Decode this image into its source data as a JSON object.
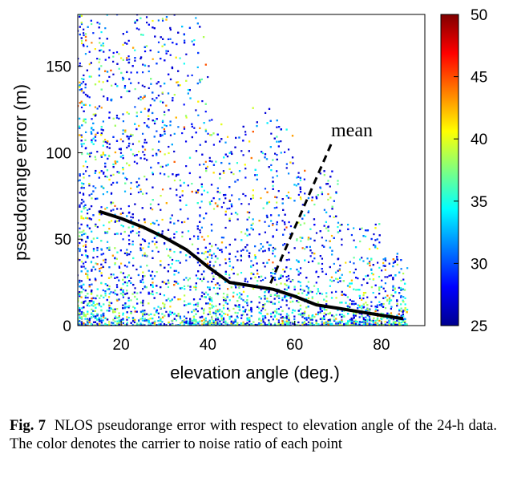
{
  "chart_data": {
    "type": "scatter",
    "title": "",
    "xlabel": "elevation angle (deg.)",
    "ylabel": "pseudorange error (m)",
    "xlim": [
      10,
      90
    ],
    "ylim": [
      0,
      180
    ],
    "x_ticks": [
      20,
      40,
      60,
      80
    ],
    "y_ticks": [
      0,
      50,
      100,
      150
    ],
    "grid": false,
    "colorbar": {
      "label": "",
      "range": [
        25,
        50
      ],
      "ticks": [
        25,
        30,
        35,
        40,
        45,
        50
      ],
      "colormap": "jet"
    },
    "series": [
      {
        "name": "mean",
        "type": "line",
        "color": "#000000",
        "x": [
          15,
          20,
          25,
          30,
          35,
          40,
          45,
          50,
          55,
          60,
          65,
          70,
          75,
          80,
          85
        ],
        "y": [
          66,
          62,
          57,
          51,
          44,
          34,
          25,
          23,
          21,
          17,
          12,
          10,
          8,
          6,
          4
        ]
      }
    ],
    "point_cloud_description_density": [
      {
        "x_range": [
          10,
          20
        ],
        "y_max": 180
      },
      {
        "x_range": [
          20,
          40
        ],
        "y_max": 180
      },
      {
        "x_range": [
          40,
          50
        ],
        "y_max": 120
      },
      {
        "x_range": [
          50,
          60
        ],
        "y_max": 130
      },
      {
        "x_range": [
          60,
          70
        ],
        "y_max": 90
      },
      {
        "x_range": [
          70,
          80
        ],
        "y_max": 60
      },
      {
        "x_range": [
          80,
          86
        ],
        "y_max": 42
      }
    ],
    "annotations": [
      {
        "text": "mean",
        "arrow_to": {
          "x": 54,
          "y": 22
        }
      }
    ]
  },
  "caption": {
    "label": "Fig. 7",
    "text": "NLOS pseudorange error with respect to elevation angle of the 24-h data. The color denotes the carrier to noise ratio of each point"
  }
}
